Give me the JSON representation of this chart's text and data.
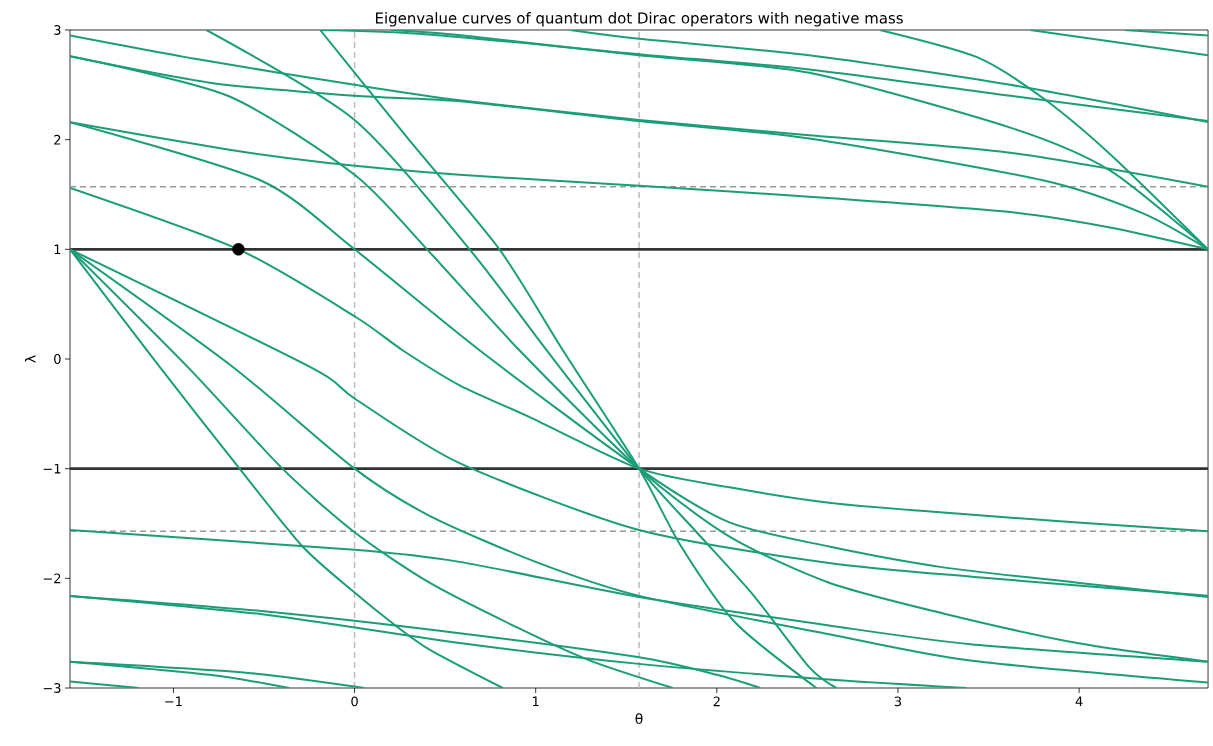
{
  "chart_data": {
    "type": "line",
    "title": "Eigenvalue curves of quantum dot Dirac operators with negative mass",
    "xlabel": "θ",
    "ylabel": "λ",
    "xlim": [
      -1.571,
      4.712
    ],
    "ylim": [
      -3,
      3
    ],
    "xticks": [
      {
        "value": -1,
        "label": "−1"
      },
      0,
      1,
      2,
      3,
      4
    ],
    "yticks": [
      {
        "value": -3,
        "label": "−3"
      },
      {
        "value": -2,
        "label": "−2"
      },
      {
        "value": -1,
        "label": "−1"
      },
      0,
      1,
      2,
      3
    ],
    "ref_lines": [
      {
        "axis": "x",
        "value": 0,
        "color": "#bbbbbb",
        "line_style": "dashed"
      },
      {
        "axis": "x",
        "value": 1.5708,
        "color": "#bbbbbb",
        "line_style": "dashed"
      },
      {
        "axis": "y",
        "value": 1.5708,
        "color": "#999999",
        "line_style": "dashed"
      },
      {
        "axis": "y",
        "value": -1.5708,
        "color": "#999999",
        "line_style": "dashed"
      },
      {
        "axis": "y",
        "value": 1,
        "color": "#333333",
        "line_style": "solid"
      },
      {
        "axis": "y",
        "value": -1,
        "color": "#333333",
        "line_style": "solid"
      }
    ],
    "series": [
      {
        "color": "#1b9e77",
        "x": [
          -1.571,
          -0.641,
          0,
          0.265,
          0.58,
          0.967,
          1.571,
          2.07,
          2.62,
          3.25,
          3.99,
          4.712
        ],
        "values": [
          1.56,
          1.0,
          0.39,
          0.08,
          -0.24,
          -0.53,
          -1.0,
          -1.17,
          -1.31,
          -1.4,
          -1.49,
          -1.57
        ]
      },
      {
        "color": "#1b9e77",
        "x": [
          -1.571,
          -1.077,
          -0.635,
          -0.287,
          0,
          0.21,
          0.414,
          0.818
        ],
        "values": [
          1,
          -0.07,
          -1.0,
          -1.71,
          -2.13,
          -2.41,
          -2.65,
          -3.0
        ]
      },
      {
        "color": "#1b9e77",
        "x": [
          -1.571,
          -0.923,
          -0.398,
          0,
          0.414,
          0.9,
          1.3,
          1.757
        ],
        "values": [
          1,
          -0.07,
          -1.0,
          -1.58,
          -2.04,
          -2.45,
          -2.75,
          -3.0
        ]
      },
      {
        "color": "#1b9e77",
        "x": [
          -1.571,
          -0.674,
          0,
          0.414,
          1.0,
          1.571,
          2.62,
          3.4,
          4.712
        ],
        "values": [
          1,
          -0.07,
          -1.0,
          -1.43,
          -1.85,
          -2.16,
          -2.51,
          -2.75,
          -2.95
        ]
      },
      {
        "color": "#1b9e77",
        "x": [
          -1.571,
          -0.249,
          0,
          0.58,
          1.571,
          2.62,
          3.44,
          4.712
        ],
        "values": [
          1,
          -0.07,
          -0.36,
          -0.95,
          -1.56,
          -1.86,
          -1.99,
          -2.16
        ]
      },
      {
        "color": "#1b9e77",
        "x": [
          -1.571,
          -0.52,
          0,
          0.69,
          1.571,
          2.07,
          2.62,
          3.25,
          3.99,
          4.712
        ],
        "values": [
          2.16,
          1.63,
          1.0,
          0.08,
          -1.0,
          -1.49,
          -1.71,
          -1.9,
          -2.04,
          -2.17
        ]
      },
      {
        "color": "#1b9e77",
        "x": [
          -1.571,
          -0.7,
          0,
          0.4,
          0.91,
          1.571,
          2.07,
          2.62,
          3.25,
          3.99,
          4.712
        ],
        "values": [
          2.76,
          2.4,
          1.68,
          1.0,
          0.08,
          -1.0,
          -1.62,
          -2.04,
          -2.32,
          -2.59,
          -2.76
        ]
      },
      {
        "color": "#1b9e77",
        "x": [
          -0.818,
          0,
          0.635,
          1.06,
          1.571,
          1.9,
          2.2,
          2.51,
          2.66
        ],
        "values": [
          3.0,
          2.18,
          1.0,
          0.08,
          -1.0,
          -1.6,
          -2.15,
          -2.81,
          -3.0
        ]
      },
      {
        "color": "#1b9e77",
        "x": [
          -0.19,
          0.3,
          0.8,
          1.15,
          1.571,
          1.8,
          2.1,
          2.55
        ],
        "values": [
          3.0,
          2.0,
          1.0,
          0.08,
          -1.0,
          -1.7,
          -2.4,
          -3.0
        ]
      },
      {
        "color": "#1b9e77",
        "x": [
          -1.571,
          -0.856,
          0,
          0.58,
          1.571,
          2.51,
          3.62,
          4.712
        ],
        "values": [
          2.95,
          2.73,
          2.5,
          2.36,
          2.18,
          2.04,
          1.88,
          1.57
        ]
      },
      {
        "color": "#1b9e77",
        "x": [
          -1.571,
          -0.8,
          0,
          0.58,
          1.571,
          2.51,
          3.8,
          4.35,
          4.712
        ],
        "values": [
          2.76,
          2.52,
          2.4,
          2.35,
          2.17,
          2.01,
          1.63,
          1.33,
          1.0
        ]
      },
      {
        "color": "#1b9e77",
        "x": [
          -1.571,
          -0.7,
          -0.157,
          0.58,
          1.571,
          2.51,
          3.62,
          4.17,
          4.712
        ],
        "values": [
          2.16,
          1.91,
          1.79,
          1.68,
          1.58,
          1.48,
          1.34,
          1.2,
          1.0
        ]
      },
      {
        "color": "#1b9e77",
        "x": [
          -0.19,
          0.41,
          1.571,
          2.51,
          3.62,
          4.712
        ],
        "values": [
          3.0,
          2.96,
          2.78,
          2.64,
          2.4,
          2.17
        ]
      },
      {
        "color": "#1b9e77",
        "x": [
          0.2,
          0.6,
          1.571,
          2.51,
          3.62,
          4.17,
          4.712
        ],
        "values": [
          3.0,
          2.95,
          2.77,
          2.61,
          2.11,
          1.72,
          1.0
        ]
      },
      {
        "color": "#1b9e77",
        "x": [
          1.19,
          1.571,
          2.51,
          3.62,
          4.712
        ],
        "values": [
          3.0,
          2.92,
          2.77,
          2.5,
          2.16
        ]
      },
      {
        "color": "#1b9e77",
        "x": [
          2.9,
          3.44,
          3.8,
          4.17,
          4.712
        ],
        "values": [
          3.0,
          2.75,
          2.38,
          1.87,
          1.0
        ]
      },
      {
        "color": "#1b9e77",
        "x": [
          4.25,
          4.712
        ],
        "values": [
          3.0,
          2.95
        ]
      },
      {
        "color": "#1b9e77",
        "x": [
          3.73,
          4.712
        ],
        "values": [
          3.0,
          2.77
        ]
      },
      {
        "color": "#1b9e77",
        "x": [
          -1.571,
          0,
          0.58,
          1.571,
          2.62,
          3.4,
          4.712
        ],
        "values": [
          -1.56,
          -1.74,
          -1.85,
          -2.17,
          -2.43,
          -2.6,
          -2.76
        ]
      },
      {
        "color": "#1b9e77",
        "x": [
          -1.571,
          -0.5,
          0.58,
          1.571,
          2.0,
          2.24
        ],
        "values": [
          -2.16,
          -2.3,
          -2.5,
          -2.72,
          -2.88,
          -3.0
        ]
      },
      {
        "color": "#1b9e77",
        "x": [
          -1.571,
          -0.5,
          0.58,
          1.571,
          2.6,
          3.38
        ],
        "values": [
          -2.16,
          -2.33,
          -2.59,
          -2.78,
          -2.92,
          -3.0
        ]
      },
      {
        "color": "#1b9e77",
        "x": [
          -1.571,
          -0.8,
          -0.36
        ],
        "values": [
          -2.76,
          -2.88,
          -3.0
        ]
      },
      {
        "color": "#1b9e77",
        "x": [
          -1.571,
          -0.6,
          0.055
        ],
        "values": [
          -2.76,
          -2.86,
          -3.0
        ]
      },
      {
        "color": "#1b9e77",
        "x": [
          -1.571,
          -1.19
        ],
        "values": [
          -2.94,
          -3.0
        ]
      },
      {
        "type": "scatter",
        "color": "#000000",
        "x": [
          -0.641
        ],
        "values": [
          1.0
        ]
      }
    ]
  }
}
